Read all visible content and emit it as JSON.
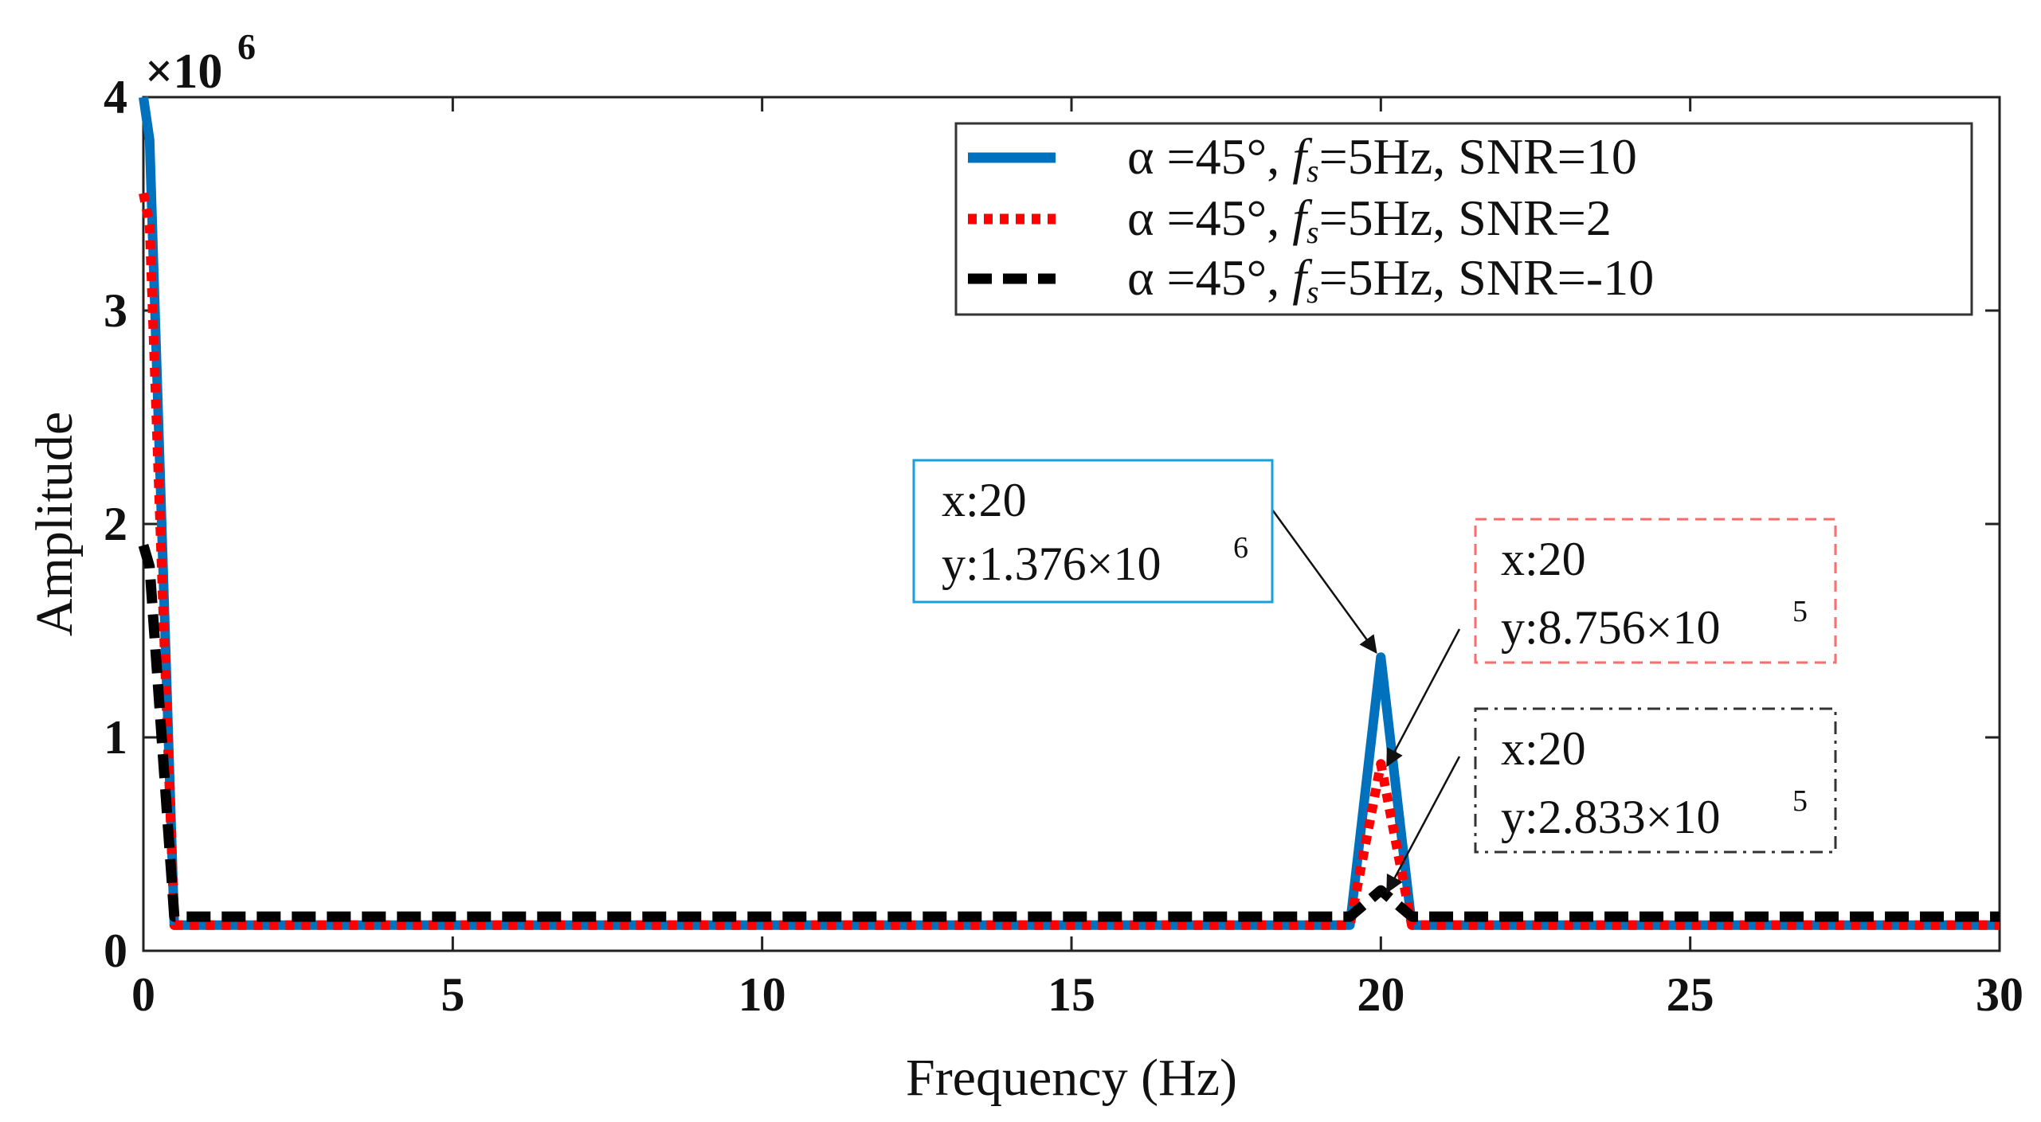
{
  "chart_data": {
    "type": "line",
    "title": "",
    "xlabel": "Frequency (Hz)",
    "ylabel": "Amplitude",
    "xlim": [
      0,
      30
    ],
    "ylim": [
      0,
      4
    ],
    "y_scale_label": {
      "base": "×10",
      "exp": "6"
    },
    "xticks": [
      "0",
      "5",
      "10",
      "15",
      "20",
      "25",
      "30"
    ],
    "yticks": [
      "0",
      "1",
      "2",
      "3",
      "4"
    ],
    "grid": false,
    "legend_position": "top-right",
    "series": [
      {
        "name": "SNR=10",
        "legend": {
          "alpha": "α =45°, ",
          "f": "f",
          "s": "s",
          "rest": "=5Hz,  SNR=10"
        },
        "color": "#0072BD",
        "style": "solid",
        "x": [
          0,
          0.1,
          0.5,
          5,
          10,
          15,
          19.5,
          20,
          20.5,
          25,
          30
        ],
        "y": [
          4.0,
          3.8,
          0.12,
          0.12,
          0.12,
          0.12,
          0.12,
          1.376,
          0.12,
          0.12,
          0.12
        ]
      },
      {
        "name": "SNR=2",
        "legend": {
          "alpha": "α =45°, ",
          "f": "f",
          "s": "s",
          "rest": "=5Hz,  SNR=2"
        },
        "color": "#FF0000",
        "style": "dotted",
        "x": [
          0,
          0.1,
          0.5,
          5,
          10,
          15,
          19.5,
          20,
          20.5,
          25,
          30
        ],
        "y": [
          3.55,
          3.4,
          0.12,
          0.12,
          0.12,
          0.12,
          0.12,
          0.8756,
          0.12,
          0.12,
          0.12
        ]
      },
      {
        "name": "SNR=-10",
        "legend": {
          "alpha": "α =45°, ",
          "f": "f",
          "s": "s",
          "rest": "=5Hz,  SNR=-10"
        },
        "color": "#000000",
        "style": "dashed",
        "x": [
          0,
          0.1,
          0.5,
          5,
          10,
          15,
          19.5,
          20,
          20.5,
          25,
          30
        ],
        "y": [
          1.9,
          1.8,
          0.16,
          0.16,
          0.16,
          0.16,
          0.16,
          0.2833,
          0.16,
          0.16,
          0.16
        ]
      }
    ],
    "annotations": [
      {
        "series": "SNR=10",
        "x_text": "x:20",
        "y_text": "y:1.376×10",
        "y_exp": "6",
        "point": [
          20,
          1.376
        ],
        "border": "#1aa0d8",
        "border_style": "solid"
      },
      {
        "series": "SNR=2",
        "x_text": "x:20",
        "y_text": "y:8.756×10",
        "y_exp": "5",
        "point": [
          20,
          0.8756
        ],
        "border": "#ff6a6a",
        "border_style": "dashed"
      },
      {
        "series": "SNR=-10",
        "x_text": "x:20",
        "y_text": "y:2.833×10",
        "y_exp": "5",
        "point": [
          20,
          0.2833
        ],
        "border": "#333333",
        "border_style": "dashdot"
      }
    ]
  }
}
